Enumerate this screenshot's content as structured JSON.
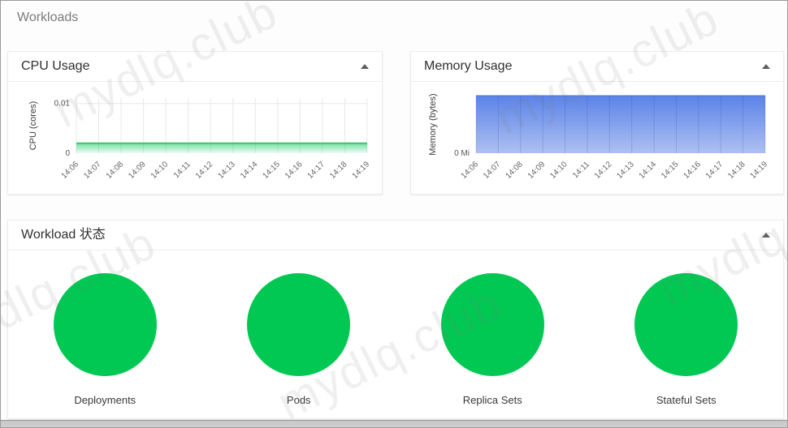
{
  "page": {
    "title": "Workloads"
  },
  "watermark": {
    "text": "mydlq.club"
  },
  "colors": {
    "success_green": "#00c853",
    "cpu_line": "#35c873",
    "cpu_fill_top": "rgba(0,200,83,0.55)",
    "cpu_fill_bottom": "rgba(0,200,83,0.06)",
    "memory_line": "#4a73dd",
    "memory_fill_top": "#5b83e8",
    "memory_fill_bottom": "#aec0f1",
    "grid_light": "#e8e8e8",
    "grid_on_area": "rgba(35,60,140,0.18)"
  },
  "cards": {
    "cpu": {
      "title": "CPU Usage",
      "collapse_icon": "arrow-drop-up"
    },
    "memory": {
      "title": "Memory Usage",
      "collapse_icon": "arrow-drop-up"
    },
    "workload_status": {
      "title": "Workload 状态",
      "collapse_icon": "arrow-drop-up"
    }
  },
  "chart_data": [
    {
      "id": "cpu-usage",
      "type": "area",
      "title": "CPU Usage",
      "ylabel": "CPU (cores)",
      "x": [
        "14:06",
        "14:07",
        "14:08",
        "14:09",
        "14:10",
        "14:11",
        "14:12",
        "14:13",
        "14:14",
        "14:15",
        "14:16",
        "14:17",
        "14:18",
        "14:19"
      ],
      "values": [
        0.002,
        0.002,
        0.002,
        0.002,
        0.002,
        0.002,
        0.002,
        0.002,
        0.002,
        0.002,
        0.002,
        0.002,
        0.002,
        0.002
      ],
      "ylim": [
        0,
        0.0111
      ],
      "yticks": [
        {
          "value": 0.01,
          "label": "0.01",
          "line": true
        },
        {
          "value": 0,
          "label": "0",
          "line": false
        }
      ],
      "grid": true,
      "grid_over_area": false,
      "x_tick_rotation": -45,
      "legend": "none"
    },
    {
      "id": "memory-usage",
      "type": "area",
      "title": "Memory Usage",
      "ylabel": "Memory (bytes)",
      "x": [
        "14:06",
        "14:07",
        "14:08",
        "14:09",
        "14:10",
        "14:11",
        "14:12",
        "14:13",
        "14:14",
        "14:15",
        "14:16",
        "14:17",
        "14:18",
        "14:19"
      ],
      "values_normalized": [
        1,
        1,
        1,
        1,
        1,
        1,
        1,
        1,
        1,
        1,
        1,
        1,
        1,
        1
      ],
      "ylim": [
        0,
        1
      ],
      "yticks": [
        {
          "value": 0,
          "label": "0 Mi",
          "line": false
        }
      ],
      "grid": true,
      "grid_over_area": true,
      "x_tick_rotation": -45,
      "legend": "none"
    },
    {
      "id": "workload-status",
      "type": "pie",
      "title": "Workload 状态",
      "items": [
        {
          "label": "Deployments",
          "ok_fraction": 1.0
        },
        {
          "label": "Pods",
          "ok_fraction": 1.0
        },
        {
          "label": "Replica Sets",
          "ok_fraction": 1.0
        },
        {
          "label": "Stateful Sets",
          "ok_fraction": 1.0
        }
      ]
    }
  ]
}
